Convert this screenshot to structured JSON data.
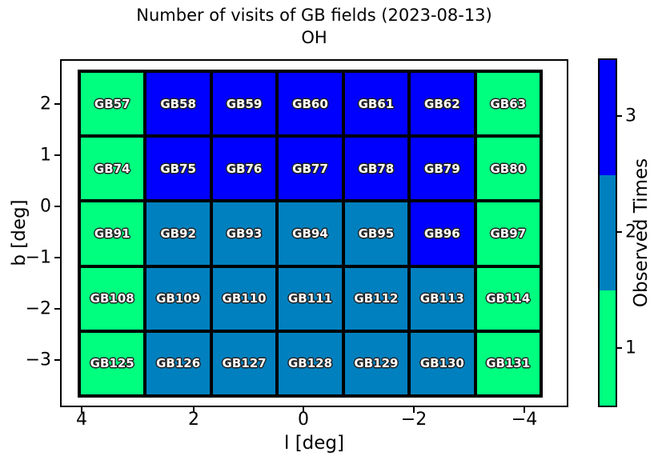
{
  "title": {
    "line1": "Number of visits of GB fields (2023-08-13)",
    "line2": "OH"
  },
  "axes": {
    "xlabel": "l [deg]",
    "ylabel": "b [deg]",
    "xtick_labels": [
      "4",
      "2",
      "0",
      "−2",
      "−4"
    ],
    "ytick_labels": [
      "2",
      "1",
      "0",
      "−1",
      "−2",
      "−3"
    ]
  },
  "colorbar": {
    "label": "Observed Times",
    "tick_labels_top_to_bottom": [
      "3",
      "2",
      "1"
    ]
  },
  "chart_data": {
    "type": "heatmap",
    "title": "Number of visits of GB fields (2023-08-13)",
    "subtitle": "OH",
    "xlabel": "l [deg]",
    "ylabel": "b [deg]",
    "xticks": [
      4,
      2,
      0,
      -2,
      -4
    ],
    "yticks": [
      2,
      1,
      0,
      -1,
      -2,
      -3
    ],
    "x_axis_reversed": true,
    "grid_on": false,
    "colorbar_label": "Observed Times",
    "colorbar_ticks": [
      1,
      2,
      3
    ],
    "colorbar_position": "right",
    "color_scale": [
      {
        "value": 1,
        "color": "#00FF7F"
      },
      {
        "value": 2,
        "color": "#0080BF"
      },
      {
        "value": 3,
        "color": "#0000FF"
      }
    ],
    "cell_border_color": "#000000",
    "cell_text_color": "#FFFFFF",
    "rows": [
      {
        "fields": [
          "GB57",
          "GB58",
          "GB59",
          "GB60",
          "GB61",
          "GB62",
          "GB63"
        ],
        "visits": [
          1,
          3,
          3,
          3,
          3,
          3,
          1
        ]
      },
      {
        "fields": [
          "GB74",
          "GB75",
          "GB76",
          "GB77",
          "GB78",
          "GB79",
          "GB80"
        ],
        "visits": [
          1,
          3,
          3,
          3,
          3,
          3,
          1
        ]
      },
      {
        "fields": [
          "GB91",
          "GB92",
          "GB93",
          "GB94",
          "GB95",
          "GB96",
          "GB97"
        ],
        "visits": [
          1,
          2,
          2,
          2,
          2,
          3,
          1
        ]
      },
      {
        "fields": [
          "GB108",
          "GB109",
          "GB110",
          "GB111",
          "GB112",
          "GB113",
          "GB114"
        ],
        "visits": [
          1,
          2,
          2,
          2,
          2,
          2,
          1
        ]
      },
      {
        "fields": [
          "GB125",
          "GB126",
          "GB127",
          "GB128",
          "GB129",
          "GB130",
          "GB131"
        ],
        "visits": [
          1,
          2,
          2,
          2,
          2,
          2,
          1
        ]
      }
    ]
  }
}
